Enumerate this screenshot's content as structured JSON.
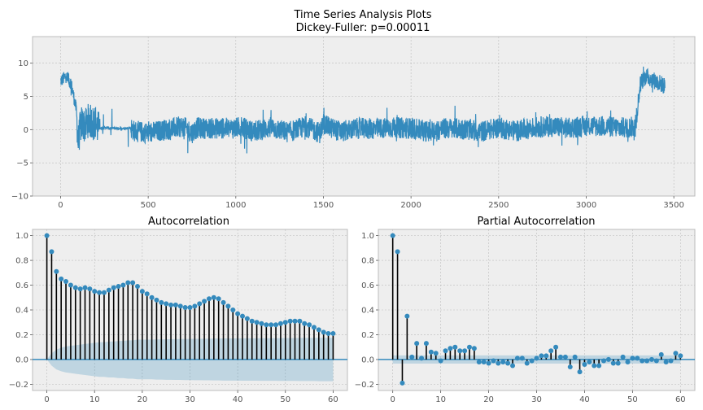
{
  "figure_title": [
    "Time Series Analysis Plots",
    "Dickey-Fuller: p=0.00011"
  ],
  "colors": {
    "axes_bg": "#eeeeee",
    "grid": "#bcbcbc",
    "series": "#348abd",
    "stem": "#000000",
    "zero_line": "#348abd",
    "conf_band": "#348abd",
    "spine": "#bcbcbc"
  },
  "chart_data": [
    {
      "type": "line",
      "title": "",
      "xlabel": "",
      "ylabel": "",
      "xlim": [
        -160,
        3620
      ],
      "ylim": [
        -10,
        14
      ],
      "xticks": [
        0,
        500,
        1000,
        1500,
        2000,
        2500,
        3000,
        3500
      ],
      "yticks": [
        -10,
        -5,
        0,
        5,
        10
      ],
      "grid": true,
      "legend": "none",
      "n_points": 3450,
      "series": [
        {
          "x": [
            0,
            30,
            60,
            90,
            100,
            110,
            120,
            140,
            160,
            180,
            200,
            210,
            230,
            260,
            300,
            350,
            380,
            400,
            420,
            500,
            600,
            700,
            750,
            780,
            800,
            850,
            900,
            950,
            980,
            1000,
            1030,
            1050,
            1100,
            1200,
            1300,
            1400,
            1480,
            1500,
            1520,
            1600,
            1700,
            1800,
            1900,
            2000,
            2100,
            2200,
            2300,
            2400,
            2500,
            2520,
            2600,
            2700,
            2800,
            2900,
            3000,
            3100,
            3200,
            3280,
            3310,
            3340,
            3380,
            3420,
            3450
          ],
          "y": [
            7.3,
            8,
            7,
            3,
            -2,
            0,
            1,
            0.5,
            1.5,
            1,
            1.2,
            0.3,
            0.2,
            0.3,
            0.2,
            0.2,
            0.2,
            0.3,
            -0.2,
            -0.5,
            0,
            0.5,
            -0.5,
            0.3,
            0.2,
            0.2,
            0.2,
            0.2,
            0.2,
            0.2,
            0.5,
            0.2,
            -0.3,
            0.3,
            -0.4,
            0.5,
            -0.5,
            1,
            0.5,
            -0.3,
            0.2,
            0.1,
            0.3,
            0.2,
            -0.3,
            0.2,
            0.1,
            -0.3,
            0.3,
            0.2,
            -0.2,
            0.3,
            0.5,
            0.2,
            0.6,
            0.5,
            0.3,
            0.4,
            7,
            8,
            7.5,
            7,
            6.5
          ]
        }
      ]
    },
    {
      "type": "bar",
      "title": "Autocorrelation",
      "xlabel": "",
      "ylabel": "",
      "xlim": [
        -3,
        63
      ],
      "ylim": [
        -0.25,
        1.05
      ],
      "xticks": [
        0,
        10,
        20,
        30,
        40,
        50,
        60
      ],
      "yticks": [
        -0.2,
        0.0,
        0.2,
        0.4,
        0.6,
        0.8,
        1.0
      ],
      "ytick_labels": [
        "−0.2",
        "0.0",
        "0.2",
        "0.4",
        "0.6",
        "0.8",
        "1.0"
      ],
      "grid": true,
      "legend": "none",
      "series": [
        {
          "x": [
            0,
            1,
            2,
            3,
            4,
            5,
            6,
            7,
            8,
            9,
            10,
            11,
            12,
            13,
            14,
            15,
            16,
            17,
            18,
            19,
            20,
            21,
            22,
            23,
            24,
            25,
            26,
            27,
            28,
            29,
            30,
            31,
            32,
            33,
            34,
            35,
            36,
            37,
            38,
            39,
            40,
            41,
            42,
            43,
            44,
            45,
            46,
            47,
            48,
            49,
            50,
            51,
            52,
            53,
            54,
            55,
            56,
            57,
            58,
            59,
            60
          ],
          "values": [
            1.0,
            0.87,
            0.71,
            0.65,
            0.63,
            0.6,
            0.58,
            0.57,
            0.58,
            0.57,
            0.55,
            0.54,
            0.54,
            0.56,
            0.58,
            0.59,
            0.6,
            0.62,
            0.62,
            0.59,
            0.55,
            0.53,
            0.5,
            0.48,
            0.46,
            0.45,
            0.44,
            0.44,
            0.43,
            0.42,
            0.42,
            0.43,
            0.45,
            0.47,
            0.49,
            0.5,
            0.49,
            0.46,
            0.43,
            0.4,
            0.37,
            0.35,
            0.33,
            0.31,
            0.3,
            0.29,
            0.28,
            0.28,
            0.28,
            0.29,
            0.3,
            0.31,
            0.31,
            0.31,
            0.29,
            0.28,
            0.26,
            0.24,
            0.22,
            0.21,
            0.21
          ]
        }
      ],
      "confidence_band_upper": [
        0,
        0.05,
        0.08,
        0.095,
        0.105,
        0.11,
        0.115,
        0.12,
        0.125,
        0.13,
        0.135,
        0.14,
        0.14,
        0.145,
        0.145,
        0.15,
        0.15,
        0.155,
        0.155,
        0.16,
        0.16,
        0.16,
        0.16,
        0.162,
        0.162,
        0.164,
        0.164,
        0.165,
        0.165,
        0.166,
        0.166,
        0.167,
        0.167,
        0.168,
        0.168,
        0.169,
        0.169,
        0.17,
        0.17,
        0.17,
        0.17,
        0.171,
        0.171,
        0.171,
        0.171,
        0.172,
        0.172,
        0.172,
        0.172,
        0.173,
        0.173,
        0.173,
        0.173,
        0.174,
        0.174,
        0.174,
        0.174,
        0.175,
        0.175,
        0.175,
        0.175
      ]
    },
    {
      "type": "bar",
      "title": "Partial Autocorrelation",
      "xlabel": "",
      "ylabel": "",
      "xlim": [
        -3,
        63
      ],
      "ylim": [
        -0.25,
        1.05
      ],
      "xticks": [
        0,
        10,
        20,
        30,
        40,
        50,
        60
      ],
      "yticks": [
        -0.2,
        0.0,
        0.2,
        0.4,
        0.6,
        0.8,
        1.0
      ],
      "ytick_labels": [
        "−0.2",
        "0.0",
        "0.2",
        "0.4",
        "0.6",
        "0.8",
        "1.0"
      ],
      "grid": true,
      "legend": "none",
      "series": [
        {
          "x": [
            0,
            1,
            2,
            3,
            4,
            5,
            6,
            7,
            8,
            9,
            10,
            11,
            12,
            13,
            14,
            15,
            16,
            17,
            18,
            19,
            20,
            21,
            22,
            23,
            24,
            25,
            26,
            27,
            28,
            29,
            30,
            31,
            32,
            33,
            34,
            35,
            36,
            37,
            38,
            39,
            40,
            41,
            42,
            43,
            44,
            45,
            46,
            47,
            48,
            49,
            50,
            51,
            52,
            53,
            54,
            55,
            56,
            57,
            58,
            59,
            60
          ],
          "values": [
            1.0,
            0.87,
            -0.19,
            0.35,
            0.02,
            0.13,
            0.01,
            0.13,
            0.06,
            0.05,
            -0.01,
            0.07,
            0.09,
            0.1,
            0.07,
            0.07,
            0.1,
            0.09,
            -0.02,
            -0.02,
            -0.03,
            -0.01,
            -0.03,
            -0.02,
            -0.03,
            -0.05,
            0.01,
            0.01,
            -0.03,
            -0.01,
            0.01,
            0.03,
            0.03,
            0.07,
            0.1,
            0.02,
            0.02,
            -0.06,
            0.02,
            -0.1,
            -0.04,
            -0.02,
            -0.05,
            -0.05,
            -0.01,
            0.0,
            -0.03,
            -0.03,
            0.02,
            -0.02,
            0.01,
            0.01,
            -0.01,
            -0.01,
            0.0,
            -0.01,
            0.04,
            -0.02,
            -0.01,
            0.05,
            0.03
          ]
        }
      ],
      "confidence_band": 0.033
    }
  ]
}
